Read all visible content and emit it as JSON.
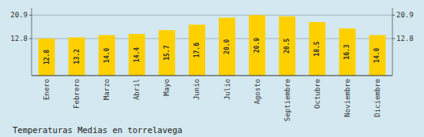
{
  "chart_data": {
    "type": "bar",
    "title": "Temperaturas Medias en torrelavega",
    "categories": [
      "Enero",
      "Febrero",
      "Marzo",
      "Abril",
      "Mayo",
      "Junio",
      "Julio",
      "Agosto",
      "Septiembre",
      "Octubre",
      "Noviembre",
      "Diciembre"
    ],
    "values": [
      12.8,
      13.2,
      14.0,
      14.4,
      15.7,
      17.6,
      20.0,
      20.9,
      20.5,
      18.5,
      16.3,
      14.0
    ],
    "value_labels": [
      "12.8",
      "13.2",
      "14.0",
      "14.4",
      "15.7",
      "17.6",
      "20.0",
      "20.9",
      "20.5",
      "18.5",
      "16.3",
      "14.0"
    ],
    "color": "#FFD000",
    "ylim": [
      0,
      23.408
    ],
    "yticks": [
      12.8,
      20.9
    ],
    "y2lim": [
      0,
      23.408
    ],
    "y2ticks": [
      12.8,
      20.9
    ],
    "grid": true,
    "data_labels": true
  }
}
